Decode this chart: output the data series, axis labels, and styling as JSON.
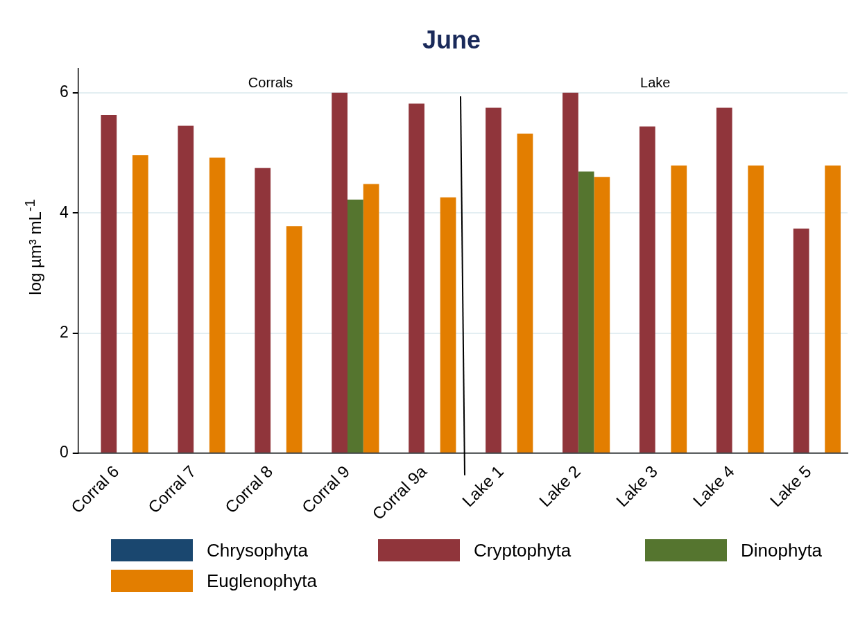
{
  "chart_data": {
    "type": "bar",
    "title": "June",
    "ylabel": "log µm³ mL$^{-1}$",
    "categories": [
      "Corral 6",
      "Corral 7",
      "Corral 8",
      "Corral 9",
      "Corral 9a",
      "Lake 1",
      "Lake 2",
      "Lake 3",
      "Lake 4",
      "Lake 5"
    ],
    "series": [
      {
        "name": "Chrysophyta",
        "color": "#1a476f",
        "values": [
          null,
          null,
          null,
          null,
          null,
          null,
          null,
          null,
          null,
          null
        ]
      },
      {
        "name": "Cryptophyta",
        "color": "#90353b",
        "values": [
          5.63,
          5.45,
          4.75,
          6.0,
          5.82,
          5.75,
          6.0,
          5.44,
          5.75,
          3.74
        ]
      },
      {
        "name": "Dinophyta",
        "color": "#55752f",
        "values": [
          null,
          null,
          null,
          4.22,
          null,
          null,
          4.69,
          null,
          null,
          null
        ]
      },
      {
        "name": "Euglenophyta",
        "color": "#e37e00",
        "values": [
          4.96,
          4.92,
          3.78,
          4.48,
          4.26,
          5.32,
          4.6,
          4.79,
          4.79,
          4.79
        ]
      }
    ],
    "ylim": [
      0,
      6.4
    ],
    "yticks": [
      0,
      2,
      4,
      6
    ],
    "grid": "y",
    "legend": "bottom",
    "annotations": [
      "Corrals",
      "Lake"
    ]
  }
}
